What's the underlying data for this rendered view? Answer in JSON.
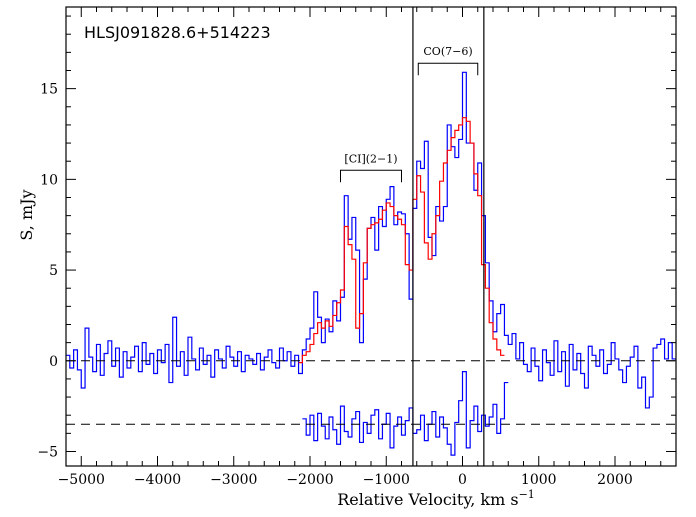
{
  "chart_data": {
    "type": "line",
    "title": "HLSJ091828.6+514223",
    "xlabel_main": "Relative Velocity, km s",
    "xlabel_exp": "−1",
    "ylabel": "S, mJy",
    "xlim": [
      -5200,
      2800
    ],
    "ylim": [
      -5.8,
      19.5
    ],
    "xticks_major": [
      -5000,
      -4000,
      -3000,
      -2000,
      -1000,
      0,
      1000,
      2000
    ],
    "xtick_labels": [
      "−5000",
      "−4000",
      "−3000",
      "−2000",
      "−1000",
      "0",
      "1000",
      "2000"
    ],
    "yticks_major": [
      -5,
      0,
      5,
      10,
      15
    ],
    "ytick_labels": [
      "−5",
      "0",
      "5",
      "10",
      "15"
    ],
    "grid": false,
    "reference_lines": {
      "y_dashed": [
        0,
        -3.5
      ],
      "x_solid": [
        -650,
        280
      ]
    },
    "annotations": [
      {
        "label": "[CI](2−1)",
        "x_from": -1600,
        "x_to": -800,
        "y": 10.5
      },
      {
        "label": "CO(7−6)",
        "x_from": -580,
        "x_to": 200,
        "y": 16.4
      }
    ],
    "series": [
      {
        "color": "#0000ff",
        "step_width": 50,
        "x": [
          -5200,
          -5150,
          -5100,
          -5050,
          -5000,
          -4950,
          -4900,
          -4850,
          -4800,
          -4750,
          -4700,
          -4650,
          -4600,
          -4550,
          -4500,
          -4450,
          -4400,
          -4350,
          -4300,
          -4250,
          -4200,
          -4150,
          -4100,
          -4050,
          -4000,
          -3950,
          -3900,
          -3850,
          -3800,
          -3750,
          -3700,
          -3650,
          -3600,
          -3550,
          -3500,
          -3450,
          -3400,
          -3350,
          -3300,
          -3250,
          -3200,
          -3150,
          -3100,
          -3050,
          -3000,
          -2950,
          -2900,
          -2850,
          -2800,
          -2750,
          -2700,
          -2650,
          -2600,
          -2550,
          -2500,
          -2450,
          -2400,
          -2350,
          -2300,
          -2250,
          -2200,
          -2150,
          -2100,
          -2050,
          -2000,
          -1950,
          -1900,
          -1850,
          -1800,
          -1750,
          -1700,
          -1650,
          -1600,
          -1550,
          -1500,
          -1450,
          -1400,
          -1350,
          -1300,
          -1250,
          -1200,
          -1150,
          -1100,
          -1050,
          -1000,
          -950,
          -900,
          -850,
          -800,
          -750,
          -700,
          -650,
          -600,
          -550,
          -500,
          -450,
          -400,
          -350,
          -300,
          -250,
          -200,
          -150,
          -100,
          -50,
          0,
          50,
          100,
          150,
          200,
          250,
          300,
          350,
          400,
          450,
          500,
          550,
          600,
          650,
          700,
          750,
          800,
          850,
          900,
          950,
          1000,
          1050,
          1100,
          1150,
          1200,
          1250,
          1300,
          1350,
          1400,
          1450,
          1500,
          1550,
          1600,
          1650,
          1700,
          1750,
          1800,
          1850,
          1900,
          1950,
          2000,
          2050,
          2100,
          2150,
          2200,
          2250,
          2300,
          2350,
          2400,
          2450,
          2500,
          2550,
          2600,
          2650,
          2700,
          2750
        ],
        "y": [
          0.3,
          -0.4,
          0.6,
          -0.5,
          -1.5,
          1.8,
          0.2,
          -0.6,
          0.9,
          -0.8,
          0.4,
          1.1,
          -0.3,
          0.7,
          -0.9,
          0.5,
          -0.4,
          0.2,
          0.8,
          -0.6,
          1.0,
          -0.2,
          0.4,
          -0.7,
          0.6,
          -0.1,
          0.9,
          -1.2,
          2.4,
          -0.3,
          0.5,
          -0.8,
          1.3,
          0.1,
          -0.5,
          0.7,
          -0.2,
          0.3,
          -0.9,
          0.6,
          0.1,
          -0.4,
          0.8,
          0.2,
          -0.3,
          0.5,
          -0.6,
          0.3,
          0.1,
          -0.2,
          0.4,
          -0.5,
          0.2,
          0.6,
          -0.1,
          -0.4,
          0.7,
          0.0,
          0.5,
          -0.3,
          0.3,
          -0.7,
          0.6,
          1.2,
          1.8,
          3.8,
          2.4,
          1.0,
          2.3,
          1.6,
          3.3,
          2.2,
          3.5,
          9.1,
          6.7,
          7.9,
          6.1,
          1.0,
          4.5,
          7.3,
          7.9,
          6.1,
          8.5,
          7.4,
          8.9,
          9.6,
          7.5,
          8.2,
          8.1,
          7.0,
          3.4,
          8.4,
          11.0,
          10.6,
          12.1,
          6.8,
          5.8,
          8.5,
          7.7,
          8.5,
          13.0,
          11.8,
          11.2,
          12.2,
          15.9,
          12.0,
          12.0,
          9.4,
          10.9,
          8.0,
          5.4,
          3.3,
          1.6,
          2.6,
          3.1,
          1.4,
          0.9,
          1.5,
          0.1,
          1.0,
          -0.2,
          -0.6,
          0.7,
          -0.3,
          -1.1,
          0.6,
          -0.1,
          -0.8,
          1.1,
          -0.6,
          0.5,
          -1.4,
          0.9,
          -0.5,
          0.4,
          -0.7,
          -1.5,
          0.8,
          0.3,
          -0.3,
          0.6,
          -0.7,
          -0.2,
          1.0,
          0.1,
          -0.5,
          -1.2,
          -0.3,
          0.2,
          0.8,
          -1.5,
          -0.9,
          -2.6,
          -2.0,
          0.7,
          0.9,
          1.2,
          0.1,
          1.0,
          0.1
        ]
      },
      {
        "color": "#ff0000",
        "step_width": 50,
        "x": [
          -2150,
          -2100,
          -2050,
          -2000,
          -1950,
          -1900,
          -1850,
          -1800,
          -1750,
          -1700,
          -1650,
          -1600,
          -1550,
          -1500,
          -1450,
          -1400,
          -1350,
          -1300,
          -1250,
          -1200,
          -1150,
          -1100,
          -1050,
          -1000,
          -950,
          -900,
          -850,
          -800,
          -750,
          -700,
          -650,
          -600,
          -550,
          -500,
          -450,
          -400,
          -350,
          -300,
          -250,
          -200,
          -150,
          -100,
          -50,
          0,
          50,
          100,
          150,
          200,
          250,
          300,
          350,
          400,
          450,
          500
        ],
        "y": [
          -0.1,
          0.3,
          0.5,
          0.9,
          1.5,
          2.1,
          1.8,
          2.2,
          1.9,
          2.5,
          3.2,
          3.9,
          7.4,
          6.4,
          5.6,
          1.8,
          2.6,
          5.4,
          7.3,
          7.5,
          7.6,
          7.8,
          8.3,
          8.7,
          8.5,
          8.0,
          7.8,
          7.5,
          5.3,
          5.0,
          8.9,
          10.2,
          9.3,
          6.5,
          5.6,
          7.0,
          8.0,
          9.9,
          10.9,
          11.6,
          12.3,
          12.7,
          13.0,
          13.4,
          13.2,
          12.0,
          10.3,
          9.1,
          5.3,
          4.0,
          2.1,
          1.2,
          0.6,
          0.3
        ]
      },
      {
        "color": "#0000ff",
        "step_width": 50,
        "x": [
          -2100,
          -2050,
          -2000,
          -1950,
          -1900,
          -1850,
          -1800,
          -1750,
          -1700,
          -1650,
          -1600,
          -1550,
          -1500,
          -1450,
          -1400,
          -1350,
          -1300,
          -1250,
          -1200,
          -1150,
          -1100,
          -1050,
          -1000,
          -950,
          -900,
          -850,
          -800,
          -750,
          -700,
          -650,
          -600,
          -550,
          -500,
          -450,
          -400,
          -350,
          -300,
          -250,
          -200,
          -150,
          -100,
          -50,
          0,
          50,
          100,
          150,
          200,
          250,
          300,
          350,
          400,
          450,
          500,
          550
        ],
        "y": [
          -3.2,
          -4.1,
          -3.0,
          -4.4,
          -2.9,
          -3.6,
          -4.3,
          -3.1,
          -3.8,
          -4.6,
          -2.5,
          -3.9,
          -4.2,
          -3.2,
          -2.8,
          -4.5,
          -3.4,
          -4.0,
          -3.0,
          -2.7,
          -4.3,
          -3.5,
          -2.9,
          -4.8,
          -3.6,
          -3.1,
          -4.1,
          -3.3,
          -2.6,
          -4.0,
          -3.8,
          -3.0,
          -4.4,
          -3.5,
          -2.8,
          -4.2,
          -3.1,
          -3.7,
          -4.6,
          -5.2,
          -3.4,
          -2.2,
          -0.6,
          -4.8,
          -3.3,
          -2.5,
          -3.9,
          -3.0,
          -3.6,
          -3.1,
          -2.4,
          -4.0,
          -3.2,
          -1.2
        ]
      }
    ]
  }
}
